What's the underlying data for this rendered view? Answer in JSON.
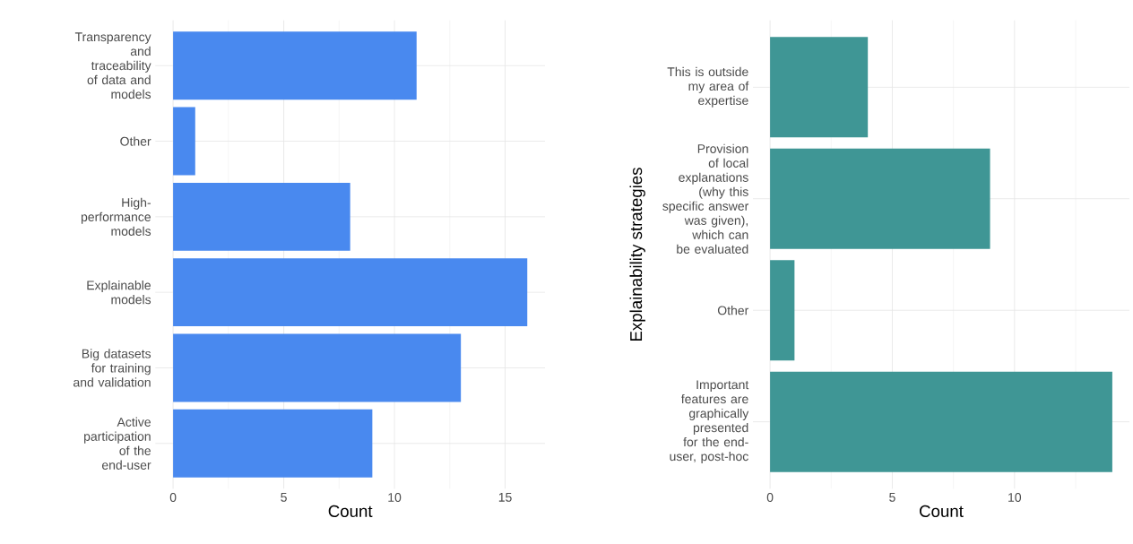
{
  "chart_data": [
    {
      "type": "bar",
      "orientation": "horizontal",
      "categories": [
        "Transparency and traceability of data and models",
        "Other",
        "High-performance models",
        "Explainable models",
        "Big datasets for training and validation",
        "Active participation of the end-user"
      ],
      "values": [
        11,
        1,
        8,
        16,
        13,
        9
      ],
      "color": "#4989ef",
      "xlim": [
        -0.8,
        16.8
      ],
      "xticks": [
        0,
        {
          "value": 2.5,
          "label": null
        },
        5,
        {
          "value": 7.5,
          "label": null
        },
        10,
        {
          "value": 12.5,
          "label": null
        },
        15
      ],
      "xlabel": "Count",
      "grid": true
    },
    {
      "type": "bar",
      "orientation": "horizontal",
      "categories": [
        "This is outside my area of expertise",
        "Provision of local explanations (why this specific answer was given), which can be evaluated",
        "Other",
        "Important features are graphically presented for the end-user, post-hoc"
      ],
      "values": [
        4,
        9,
        1,
        14
      ],
      "color": "#3f9695",
      "xlim": [
        -0.7,
        14.7
      ],
      "xticks": [
        0,
        {
          "value": 2.5,
          "label": null
        },
        5,
        {
          "value": 7.5,
          "label": null
        },
        10,
        {
          "value": 12.5,
          "label": null
        }
      ],
      "xlabel": "Count",
      "ylabel": "Explainability strategies",
      "grid": true
    }
  ]
}
